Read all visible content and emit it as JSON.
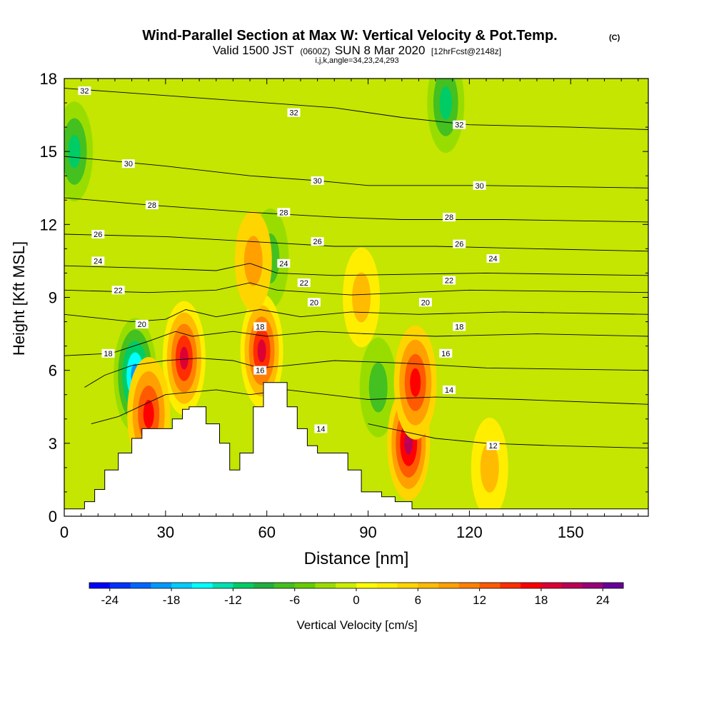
{
  "header": {
    "title_main": "Wind-Parallel Section at Max W: Vertical Velocity & Pot.Temp.",
    "title_unit": "(C)",
    "valid_prefix": "Valid 1500 JST",
    "valid_utc": "(0600Z)",
    "valid_date": "SUN 8 Mar 2020",
    "valid_fcst": "[12hrFcst@2148z]",
    "indices": "i,j,k,angle=34,23,24,293"
  },
  "colorbar": {
    "label": "Vertical Velocity [cm/s]",
    "tick_labels": [
      "-24",
      "-18",
      "-12",
      "-6",
      "0",
      "6",
      "12",
      "18",
      "24"
    ],
    "min": -26,
    "max": 26,
    "step": 2,
    "colors": [
      "#0000ff",
      "#0033ff",
      "#0066ff",
      "#0099ff",
      "#00ccff",
      "#00ffff",
      "#00e0b0",
      "#00cc66",
      "#20b040",
      "#44c020",
      "#66cc00",
      "#99dd00",
      "#ccee00",
      "#ffff00",
      "#ffee00",
      "#ffd500",
      "#ffbb00",
      "#ffa000",
      "#ff8000",
      "#ff5a00",
      "#ff2d00",
      "#ff0000",
      "#dd0033",
      "#bb0055",
      "#990077",
      "#660099"
    ]
  },
  "chart_data": {
    "type": "heatmap",
    "xlabel": "Distance [nm]",
    "ylabel": "Height [Kft MSL]",
    "xlim": [
      0,
      173
    ],
    "ylim": [
      0,
      18
    ],
    "xticks": [
      0,
      30,
      60,
      90,
      120,
      150
    ],
    "yticks": [
      0,
      3,
      6,
      9,
      12,
      15,
      18
    ],
    "xtick_labels": [
      "0",
      "30",
      "60",
      "90",
      "120",
      "150"
    ],
    "ytick_labels": [
      "0",
      "3",
      "6",
      "9",
      "12",
      "15",
      "18"
    ],
    "field": "Vertical Velocity",
    "field_unit": "cm/s",
    "features": [
      {
        "kind": "downdraft",
        "x": 21,
        "y": 5.8,
        "value": -20
      },
      {
        "kind": "downdraft",
        "x": 3,
        "y": 15,
        "value": -12
      },
      {
        "kind": "downdraft",
        "x": 113,
        "y": 17,
        "value": -12
      },
      {
        "kind": "downdraft",
        "x": 61,
        "y": 10.6,
        "value": -8
      },
      {
        "kind": "downdraft",
        "x": 93,
        "y": 5.3,
        "value": -8
      },
      {
        "kind": "updraft",
        "x": 35.5,
        "y": 6.5,
        "value": 18
      },
      {
        "kind": "updraft",
        "x": 25,
        "y": 4.2,
        "value": 16
      },
      {
        "kind": "updraft",
        "x": 58.5,
        "y": 6.8,
        "value": 18
      },
      {
        "kind": "updraft",
        "x": 102,
        "y": 3,
        "value": 20
      },
      {
        "kind": "updraft",
        "x": 104,
        "y": 5.5,
        "value": 16
      },
      {
        "kind": "updraft",
        "x": 56,
        "y": 10.5,
        "value": 8
      },
      {
        "kind": "updraft",
        "x": 88,
        "y": 9,
        "value": 6
      },
      {
        "kind": "updraft",
        "x": 126,
        "y": 2,
        "value": 6
      }
    ],
    "terrain": {
      "x": [
        0,
        6,
        6,
        9,
        9,
        12,
        12,
        16,
        16,
        20,
        20,
        23,
        23,
        25,
        25,
        32,
        32,
        35,
        35,
        37,
        37,
        42,
        42,
        46,
        46,
        49,
        49,
        52,
        52,
        56,
        56,
        59,
        59,
        66,
        66,
        69,
        69,
        72,
        72,
        75,
        75,
        78,
        78,
        84,
        84,
        88,
        88,
        94,
        94,
        98,
        98,
        103,
        103,
        173
      ],
      "height": [
        0.3,
        0.3,
        0.6,
        0.6,
        1.1,
        1.1,
        1.9,
        1.9,
        2.6,
        2.6,
        3.2,
        3.2,
        3.6,
        3.6,
        3.6,
        3.6,
        4.0,
        4.0,
        4.4,
        4.4,
        4.5,
        4.5,
        3.8,
        3.8,
        3.0,
        3.0,
        1.9,
        1.9,
        2.6,
        2.6,
        4.5,
        4.5,
        5.5,
        5.5,
        4.5,
        4.5,
        3.6,
        3.6,
        2.9,
        2.9,
        2.6,
        2.6,
        2.6,
        2.6,
        1.9,
        1.9,
        1.0,
        1.0,
        0.8,
        0.8,
        0.6,
        0.6,
        0.3,
        0.3
      ]
    },
    "isentropes": {
      "field": "Pot.Temp.",
      "unit": "C",
      "contours": [
        {
          "level": "32",
          "points": [
            [
              0,
              17.6
            ],
            [
              40,
              17.2
            ],
            [
              80,
              16.8
            ],
            [
              100,
              16.4
            ],
            [
              120,
              16.1
            ],
            [
              150,
              16.0
            ],
            [
              173,
              15.9
            ]
          ]
        },
        {
          "level": "30",
          "points": [
            [
              0,
              14.8
            ],
            [
              30,
              14.4
            ],
            [
              55,
              14.0
            ],
            [
              75,
              13.8
            ],
            [
              90,
              13.6
            ],
            [
              125,
              13.6
            ],
            [
              173,
              13.5
            ]
          ]
        },
        {
          "level": "28",
          "points": [
            [
              0,
              13.1
            ],
            [
              25,
              12.8
            ],
            [
              55,
              12.5
            ],
            [
              80,
              12.3
            ],
            [
              100,
              12.2
            ],
            [
              130,
              12.2
            ],
            [
              173,
              12.1
            ]
          ]
        },
        {
          "level": "26",
          "points": [
            [
              0,
              11.6
            ],
            [
              30,
              11.5
            ],
            [
              55,
              11.3
            ],
            [
              80,
              11.1
            ],
            [
              110,
              11.1
            ],
            [
              140,
              11.0
            ],
            [
              173,
              10.9
            ]
          ]
        },
        {
          "level": "24",
          "points": [
            [
              0,
              10.3
            ],
            [
              25,
              10.2
            ],
            [
              45,
              10.1
            ],
            [
              55,
              10.4
            ],
            [
              63,
              10.0
            ],
            [
              80,
              9.9
            ],
            [
              125,
              10.0
            ],
            [
              173,
              9.9
            ]
          ]
        },
        {
          "level": "22",
          "points": [
            [
              0,
              9.3
            ],
            [
              25,
              9.2
            ],
            [
              45,
              9.3
            ],
            [
              55,
              9.6
            ],
            [
              63,
              9.3
            ],
            [
              85,
              9.1
            ],
            [
              120,
              9.3
            ],
            [
              173,
              9.2
            ]
          ]
        },
        {
          "level": "20",
          "points": [
            [
              0,
              8.3
            ],
            [
              20,
              8.0
            ],
            [
              30,
              8.1
            ],
            [
              36,
              8.5
            ],
            [
              45,
              8.2
            ],
            [
              58,
              8.5
            ],
            [
              70,
              8.2
            ],
            [
              85,
              8.4
            ],
            [
              105,
              8.3
            ],
            [
              130,
              8.4
            ],
            [
              173,
              8.3
            ]
          ]
        },
        {
          "level": "18",
          "points": [
            [
              0,
              6.6
            ],
            [
              14,
              6.7
            ],
            [
              25,
              7.2
            ],
            [
              33,
              7.6
            ],
            [
              38,
              7.4
            ],
            [
              50,
              7.6
            ],
            [
              60,
              7.4
            ],
            [
              75,
              7.6
            ],
            [
              90,
              7.5
            ],
            [
              110,
              7.4
            ],
            [
              140,
              7.5
            ],
            [
              173,
              7.4
            ]
          ]
        },
        {
          "level": "16",
          "points": [
            [
              6,
              5.3
            ],
            [
              12,
              5.8
            ],
            [
              20,
              6.2
            ],
            [
              30,
              6.4
            ],
            [
              40,
              6.5
            ],
            [
              50,
              6.4
            ],
            [
              58,
              6.1
            ],
            [
              66,
              6.2
            ],
            [
              80,
              6.4
            ],
            [
              100,
              6.3
            ],
            [
              125,
              6.1
            ],
            [
              173,
              6.0
            ]
          ]
        },
        {
          "level": "14",
          "points": [
            [
              8,
              3.8
            ],
            [
              16,
              4.1
            ],
            [
              30,
              5.0
            ],
            [
              45,
              5.2
            ],
            [
              55,
              5.0
            ],
            [
              66,
              5.2
            ],
            [
              78,
              5.0
            ],
            [
              90,
              4.8
            ],
            [
              110,
              4.9
            ],
            [
              135,
              4.8
            ],
            [
              173,
              4.6
            ]
          ]
        },
        {
          "level": "12",
          "points": [
            [
              90,
              3.8
            ],
            [
              100,
              3.5
            ],
            [
              110,
              3.2
            ],
            [
              125,
              3.0
            ],
            [
              145,
              2.9
            ],
            [
              173,
              2.8
            ]
          ]
        }
      ],
      "labels": [
        {
          "text": "32",
          "x": 6,
          "y": 17.5
        },
        {
          "text": "32",
          "x": 68,
          "y": 16.6
        },
        {
          "text": "32",
          "x": 117,
          "y": 16.1
        },
        {
          "text": "30",
          "x": 19,
          "y": 14.5
        },
        {
          "text": "30",
          "x": 75,
          "y": 13.8
        },
        {
          "text": "30",
          "x": 123,
          "y": 13.6
        },
        {
          "text": "28",
          "x": 26,
          "y": 12.8
        },
        {
          "text": "28",
          "x": 65,
          "y": 12.5
        },
        {
          "text": "28",
          "x": 114,
          "y": 12.3
        },
        {
          "text": "26",
          "x": 10,
          "y": 11.6
        },
        {
          "text": "26",
          "x": 75,
          "y": 11.3
        },
        {
          "text": "26",
          "x": 117,
          "y": 11.2
        },
        {
          "text": "24",
          "x": 10,
          "y": 10.5
        },
        {
          "text": "24",
          "x": 65,
          "y": 10.4
        },
        {
          "text": "24",
          "x": 127,
          "y": 10.6
        },
        {
          "text": "22",
          "x": 16,
          "y": 9.3
        },
        {
          "text": "22",
          "x": 71,
          "y": 9.6
        },
        {
          "text": "22",
          "x": 114,
          "y": 9.7
        },
        {
          "text": "20",
          "x": 23,
          "y": 7.9
        },
        {
          "text": "20",
          "x": 74,
          "y": 8.8
        },
        {
          "text": "20",
          "x": 107,
          "y": 8.8
        },
        {
          "text": "18",
          "x": 13,
          "y": 6.7
        },
        {
          "text": "18",
          "x": 58,
          "y": 7.8
        },
        {
          "text": "18",
          "x": 117,
          "y": 7.8
        },
        {
          "text": "16",
          "x": 58,
          "y": 6.0
        },
        {
          "text": "16",
          "x": 113,
          "y": 6.7
        },
        {
          "text": "14",
          "x": 76,
          "y": 3.6
        },
        {
          "text": "14",
          "x": 114,
          "y": 5.2
        },
        {
          "text": "12",
          "x": 127,
          "y": 2.9
        }
      ]
    }
  }
}
